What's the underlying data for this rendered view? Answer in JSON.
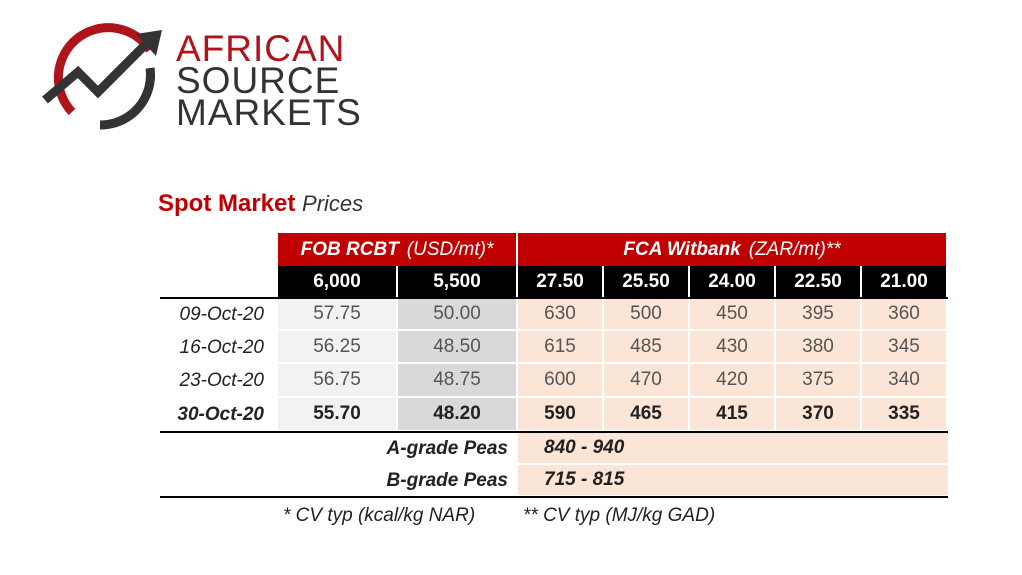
{
  "logo": {
    "line1": "AFRICAN",
    "line2": "SOURCE",
    "line3": "MARKETS"
  },
  "title": {
    "main": "Spot Market",
    "sub": "Prices"
  },
  "table": {
    "groups": [
      {
        "name": "FOB RCBT",
        "unit": "(USD/mt)*"
      },
      {
        "name": "FCA Witbank",
        "unit": "(ZAR/mt)**"
      }
    ],
    "columns": [
      "6,000",
      "5,500",
      "27.50",
      "25.50",
      "24.00",
      "22.50",
      "21.00"
    ],
    "rows": [
      [
        "09-Oct-20",
        "57.75",
        "50.00",
        "630",
        "500",
        "450",
        "395",
        "360"
      ],
      [
        "16-Oct-20",
        "56.25",
        "48.50",
        "615",
        "485",
        "430",
        "380",
        "345"
      ],
      [
        "23-Oct-20",
        "56.75",
        "48.75",
        "600",
        "470",
        "420",
        "375",
        "340"
      ],
      [
        "30-Oct-20",
        "55.70",
        "48.20",
        "590",
        "465",
        "415",
        "370",
        "335"
      ]
    ],
    "peas": [
      {
        "label": "A-grade Peas",
        "price": "840 - 940"
      },
      {
        "label": "B-grade Peas",
        "price": "715 - 815"
      }
    ]
  },
  "footnotes": [
    "* CV typ (kcal/kg NAR)",
    "** CV typ (MJ/kg GAD)"
  ]
}
